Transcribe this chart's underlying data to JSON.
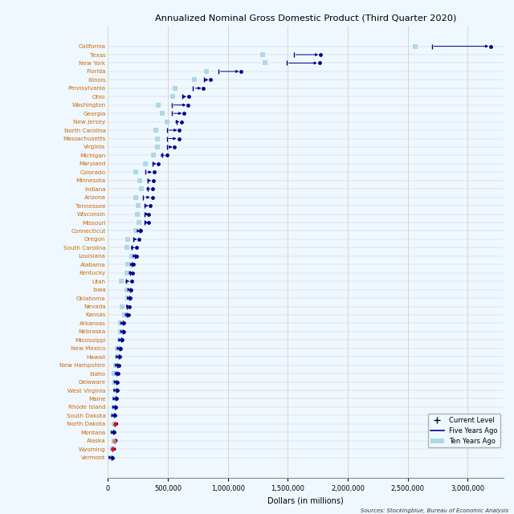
{
  "title": "Annualized Nominal Gross Domestic Product (Third Quarter 2020)",
  "xlabel": "Dollars (in millions)",
  "source": "Sources: Stockingblue, Bureau of Economic Analysis",
  "states": [
    "California",
    "Texas",
    "New York",
    "Florida",
    "Illinois",
    "Pennsylvania",
    "Ohio",
    "Washington",
    "Georgia",
    "New Jersey",
    "North Carolina",
    "Massachusetts",
    "Virginia",
    "Michigan",
    "Maryland",
    "Colorado",
    "Minnesota",
    "Indiana",
    "Arizona",
    "Tennessee",
    "Wisconsin",
    "Missouri",
    "Connecticut",
    "Oregon",
    "South Carolina",
    "Louisiana",
    "Alabama",
    "Kentucky",
    "Utah",
    "Iowa",
    "Oklahoma",
    "Nevada",
    "Kansas",
    "Arkansas",
    "Nebraska",
    "Mississippi",
    "New Mexico",
    "Hawaii",
    "New Hampshire",
    "Idaho",
    "Delaware",
    "West Virginia",
    "Maine",
    "Rhode Island",
    "South Dakota",
    "North Dakota",
    "Montana",
    "Alaska",
    "Wyoming",
    "Vermont"
  ],
  "current": [
    3192000,
    1773000,
    1763000,
    1111000,
    857000,
    797000,
    673000,
    669000,
    634000,
    612000,
    596000,
    590000,
    556000,
    490000,
    422000,
    385000,
    377000,
    371000,
    370000,
    355000,
    340000,
    337000,
    270000,
    261000,
    241000,
    236000,
    213000,
    204000,
    196000,
    191000,
    188000,
    181000,
    172000,
    132000,
    131000,
    116000,
    103000,
    95000,
    88000,
    86000,
    78000,
    75000,
    69000,
    65000,
    57000,
    55000,
    54000,
    50000,
    37000,
    35000
  ],
  "five_years_ago": [
    2700000,
    1550000,
    1490000,
    920000,
    800000,
    710000,
    620000,
    530000,
    530000,
    570000,
    490000,
    490000,
    490000,
    450000,
    370000,
    310000,
    330000,
    330000,
    295000,
    305000,
    305000,
    305000,
    265000,
    210000,
    195000,
    225000,
    195000,
    185000,
    150000,
    185000,
    175000,
    155000,
    160000,
    127000,
    125000,
    110000,
    97000,
    88000,
    77000,
    68000,
    72000,
    73000,
    64000,
    59000,
    50000,
    57000,
    47000,
    55000,
    40000,
    32000
  ],
  "ten_years_ago": [
    2560000,
    1290000,
    1310000,
    820000,
    720000,
    560000,
    540000,
    420000,
    450000,
    490000,
    400000,
    410000,
    410000,
    380000,
    310000,
    235000,
    265000,
    280000,
    230000,
    250000,
    248000,
    258000,
    230000,
    165000,
    155000,
    200000,
    165000,
    158000,
    110000,
    155000,
    163000,
    115000,
    140000,
    107000,
    107000,
    95000,
    80000,
    75000,
    62000,
    50000,
    60000,
    67000,
    55000,
    51000,
    41000,
    50000,
    38000,
    50000,
    40000,
    27000
  ],
  "dot_colors": [
    "#00008b",
    "#00008b",
    "#00008b",
    "#00008b",
    "#00008b",
    "#00008b",
    "#00008b",
    "#00008b",
    "#00008b",
    "#00008b",
    "#00008b",
    "#00008b",
    "#00008b",
    "#00008b",
    "#00008b",
    "#00008b",
    "#00008b",
    "#00008b",
    "#00008b",
    "#00008b",
    "#00008b",
    "#00008b",
    "#00008b",
    "#00008b",
    "#00008b",
    "#00008b",
    "#00008b",
    "#00008b",
    "#00008b",
    "#00008b",
    "#00008b",
    "#00008b",
    "#00008b",
    "#00008b",
    "#00008b",
    "#00008b",
    "#00008b",
    "#00008b",
    "#00008b",
    "#00008b",
    "#00008b",
    "#00008b",
    "#00008b",
    "#00008b",
    "#00008b",
    "#ff0000",
    "#00008b",
    "#ff6666",
    "#ff0000",
    "#00008b"
  ],
  "label_colors": [
    "#cc6600",
    "#cc6600",
    "#cc6600",
    "#cc6600",
    "#cc6600",
    "#cc6600",
    "#cc6600",
    "#cc6600",
    "#cc6600",
    "#cc6600",
    "#cc6600",
    "#cc6600",
    "#cc6600",
    "#cc6600",
    "#cc6600",
    "#cc6600",
    "#cc6600",
    "#cc6600",
    "#cc6600",
    "#cc6600",
    "#cc6600",
    "#cc6600",
    "#cc6600",
    "#cc6600",
    "#cc6600",
    "#cc6600",
    "#cc6600",
    "#cc6600",
    "#cc6600",
    "#cc6600",
    "#cc6600",
    "#cc6600",
    "#cc6600",
    "#cc6600",
    "#cc6600",
    "#cc6600",
    "#cc6600",
    "#cc6600",
    "#cc6600",
    "#cc6600",
    "#cc6600",
    "#cc6600",
    "#cc6600",
    "#cc6600",
    "#cc6600",
    "#cc6600",
    "#cc6600",
    "#cc6600",
    "#cc6600",
    "#cc6600"
  ],
  "ten_years_color": "#add8e6",
  "five_years_color": "#00008b",
  "bg_color": "#f0f8ff",
  "grid_color": "#c8c8c8",
  "xlim": [
    0,
    3300000
  ],
  "xtick_step": 500000
}
